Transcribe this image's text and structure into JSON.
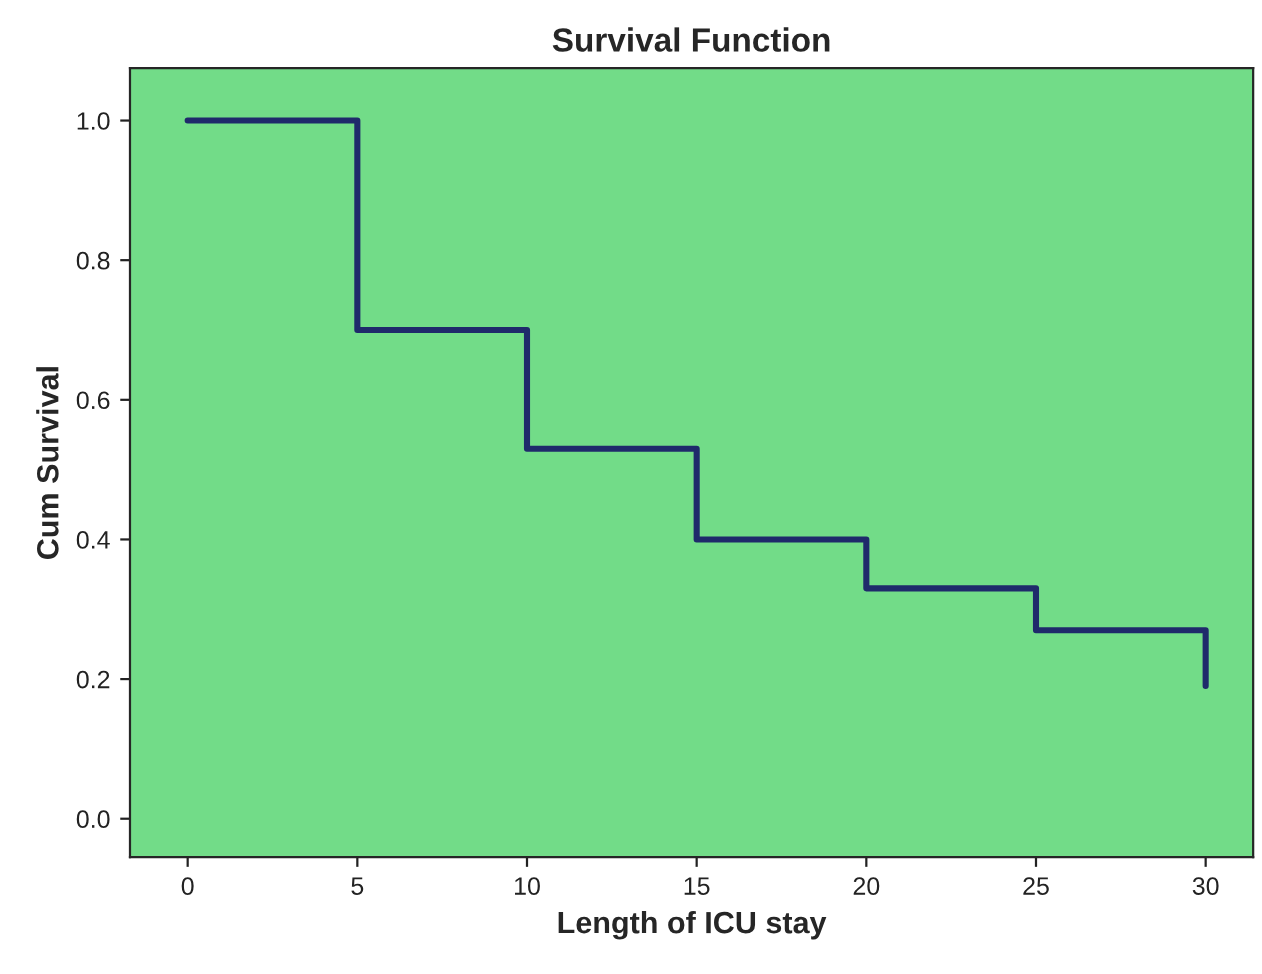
{
  "chart_data": {
    "type": "step",
    "title": "Survival Function",
    "xlabel": "Length of ICU stay",
    "ylabel": "Cum Survival",
    "x": [
      0,
      5,
      10,
      15,
      20,
      25,
      30
    ],
    "series": [
      {
        "color": "#1f2a6b",
        "values": [
          1.0,
          0.7,
          0.53,
          0.4,
          0.33,
          0.27,
          0.19
        ]
      }
    ],
    "xlim": [
      -1.7,
      31.4
    ],
    "ylim": [
      -0.055,
      1.075
    ],
    "xticks": [
      0,
      5,
      10,
      15,
      20,
      25,
      30
    ],
    "yticks": [
      {
        "value": 0,
        "label": "0.0"
      },
      {
        "value": 0.2,
        "label": "0.2"
      },
      {
        "value": 0.4,
        "label": "0.4"
      },
      {
        "value": 0.6,
        "label": "0.6"
      },
      {
        "value": 0.8,
        "label": "0.8"
      },
      {
        "value": 1.0,
        "label": "1.0"
      }
    ],
    "grid": false,
    "legend": false
  }
}
